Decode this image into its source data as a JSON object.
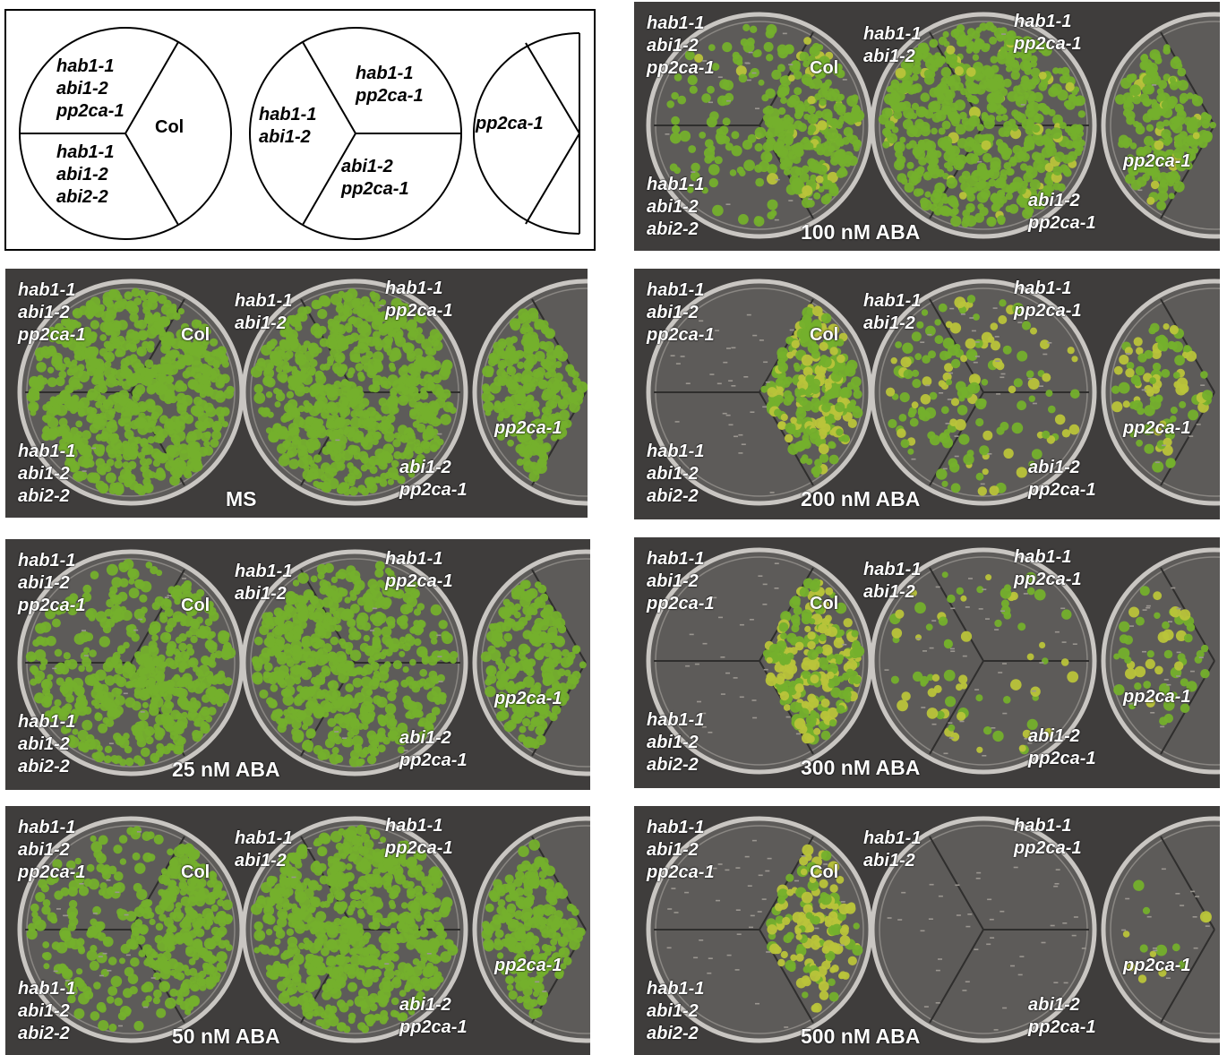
{
  "colors": {
    "background": "#3f3d3c",
    "dish_agar": "#5d5b59",
    "seedling_green": "#74b02c",
    "seedling_yellow": "#b9c43a",
    "label_text": "#ffffff",
    "schematic_text": "#000000"
  },
  "labels": {
    "left_top": "hab1-1\nabi1-2\npp2ca-1",
    "left_bottom": "hab1-1\nabi1-2\nabi2-2",
    "col": "Col",
    "mid_left": "hab1-1\nabi1-2",
    "mid_top": "hab1-1\npp2ca-1",
    "mid_bottom": "abi1-2\npp2ca-1",
    "pp2ca": "pp2ca-1"
  },
  "panels": [
    {
      "id": "schematic",
      "condition": ""
    },
    {
      "id": "ms",
      "condition": "MS",
      "col": 0.95,
      "triple_top": 0.9,
      "triple_bottom": 0.9,
      "mid_left": 0.9,
      "mid_top": 0.9,
      "mid_bottom": 0.9,
      "pp2ca": 0.95,
      "yellow": 0
    },
    {
      "id": "aba-25",
      "condition": "25 nM ABA",
      "col": 0.9,
      "triple_top": 0.35,
      "triple_bottom": 0.7,
      "mid_left": 0.95,
      "mid_top": 0.6,
      "mid_bottom": 0.6,
      "pp2ca": 0.85,
      "yellow": 0
    },
    {
      "id": "aba-50",
      "condition": "50 nM ABA",
      "col": 0.95,
      "triple_top": 0.3,
      "triple_bottom": 0.3,
      "mid_left": 0.9,
      "mid_top": 0.85,
      "mid_bottom": 0.85,
      "pp2ca": 0.85,
      "yellow": 0
    },
    {
      "id": "aba-100",
      "condition": "100 nM ABA",
      "col": 0.95,
      "triple_top": 0.2,
      "triple_bottom": 0.2,
      "mid_left": 0.85,
      "mid_top": 0.8,
      "mid_bottom": 0.8,
      "pp2ca": 0.8,
      "yellow": 0.05
    },
    {
      "id": "aba-200",
      "condition": "200 nM ABA",
      "col": 0.95,
      "triple_top": 0.0,
      "triple_bottom": 0.0,
      "mid_left": 0.3,
      "mid_top": 0.15,
      "mid_bottom": 0.15,
      "pp2ca": 0.35,
      "yellow": 0.3
    },
    {
      "id": "aba-300",
      "condition": "300 nM ABA",
      "col": 0.95,
      "triple_top": 0.0,
      "triple_bottom": 0.0,
      "mid_left": 0.12,
      "mid_top": 0.08,
      "mid_bottom": 0.08,
      "pp2ca": 0.2,
      "yellow": 0.4
    },
    {
      "id": "aba-500",
      "condition": "500 nM ABA",
      "col": 0.55,
      "triple_top": 0.0,
      "triple_bottom": 0.0,
      "mid_left": 0.0,
      "mid_top": 0.0,
      "mid_bottom": 0.0,
      "pp2ca": 0.05,
      "yellow": 0.65
    }
  ]
}
